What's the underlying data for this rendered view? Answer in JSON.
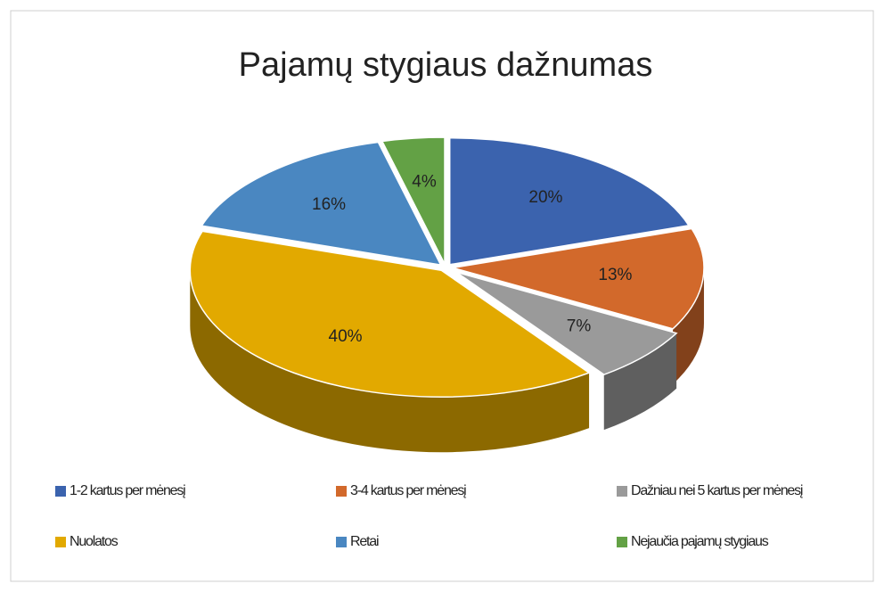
{
  "chart_data": {
    "type": "pie",
    "title": "Pajamų stygiaus dažnumas",
    "categories": [
      "1-2 kartus per mėnesį",
      "3-4 kartus per mėnesį",
      "Dažniau nei 5 kartus per mėnesį",
      "Nuolatos",
      "Retai",
      "Nejaučia pajamų stygiaus"
    ],
    "values": [
      20,
      13,
      7,
      40,
      16,
      4
    ],
    "value_labels": [
      "20%",
      "13%",
      "7%",
      "40%",
      "16%",
      "4%"
    ],
    "colors": [
      "#3b63ae",
      "#d2692b",
      "#9a9a9a",
      "#e2a900",
      "#4a87c1",
      "#63a145"
    ],
    "legend": "bottom"
  }
}
